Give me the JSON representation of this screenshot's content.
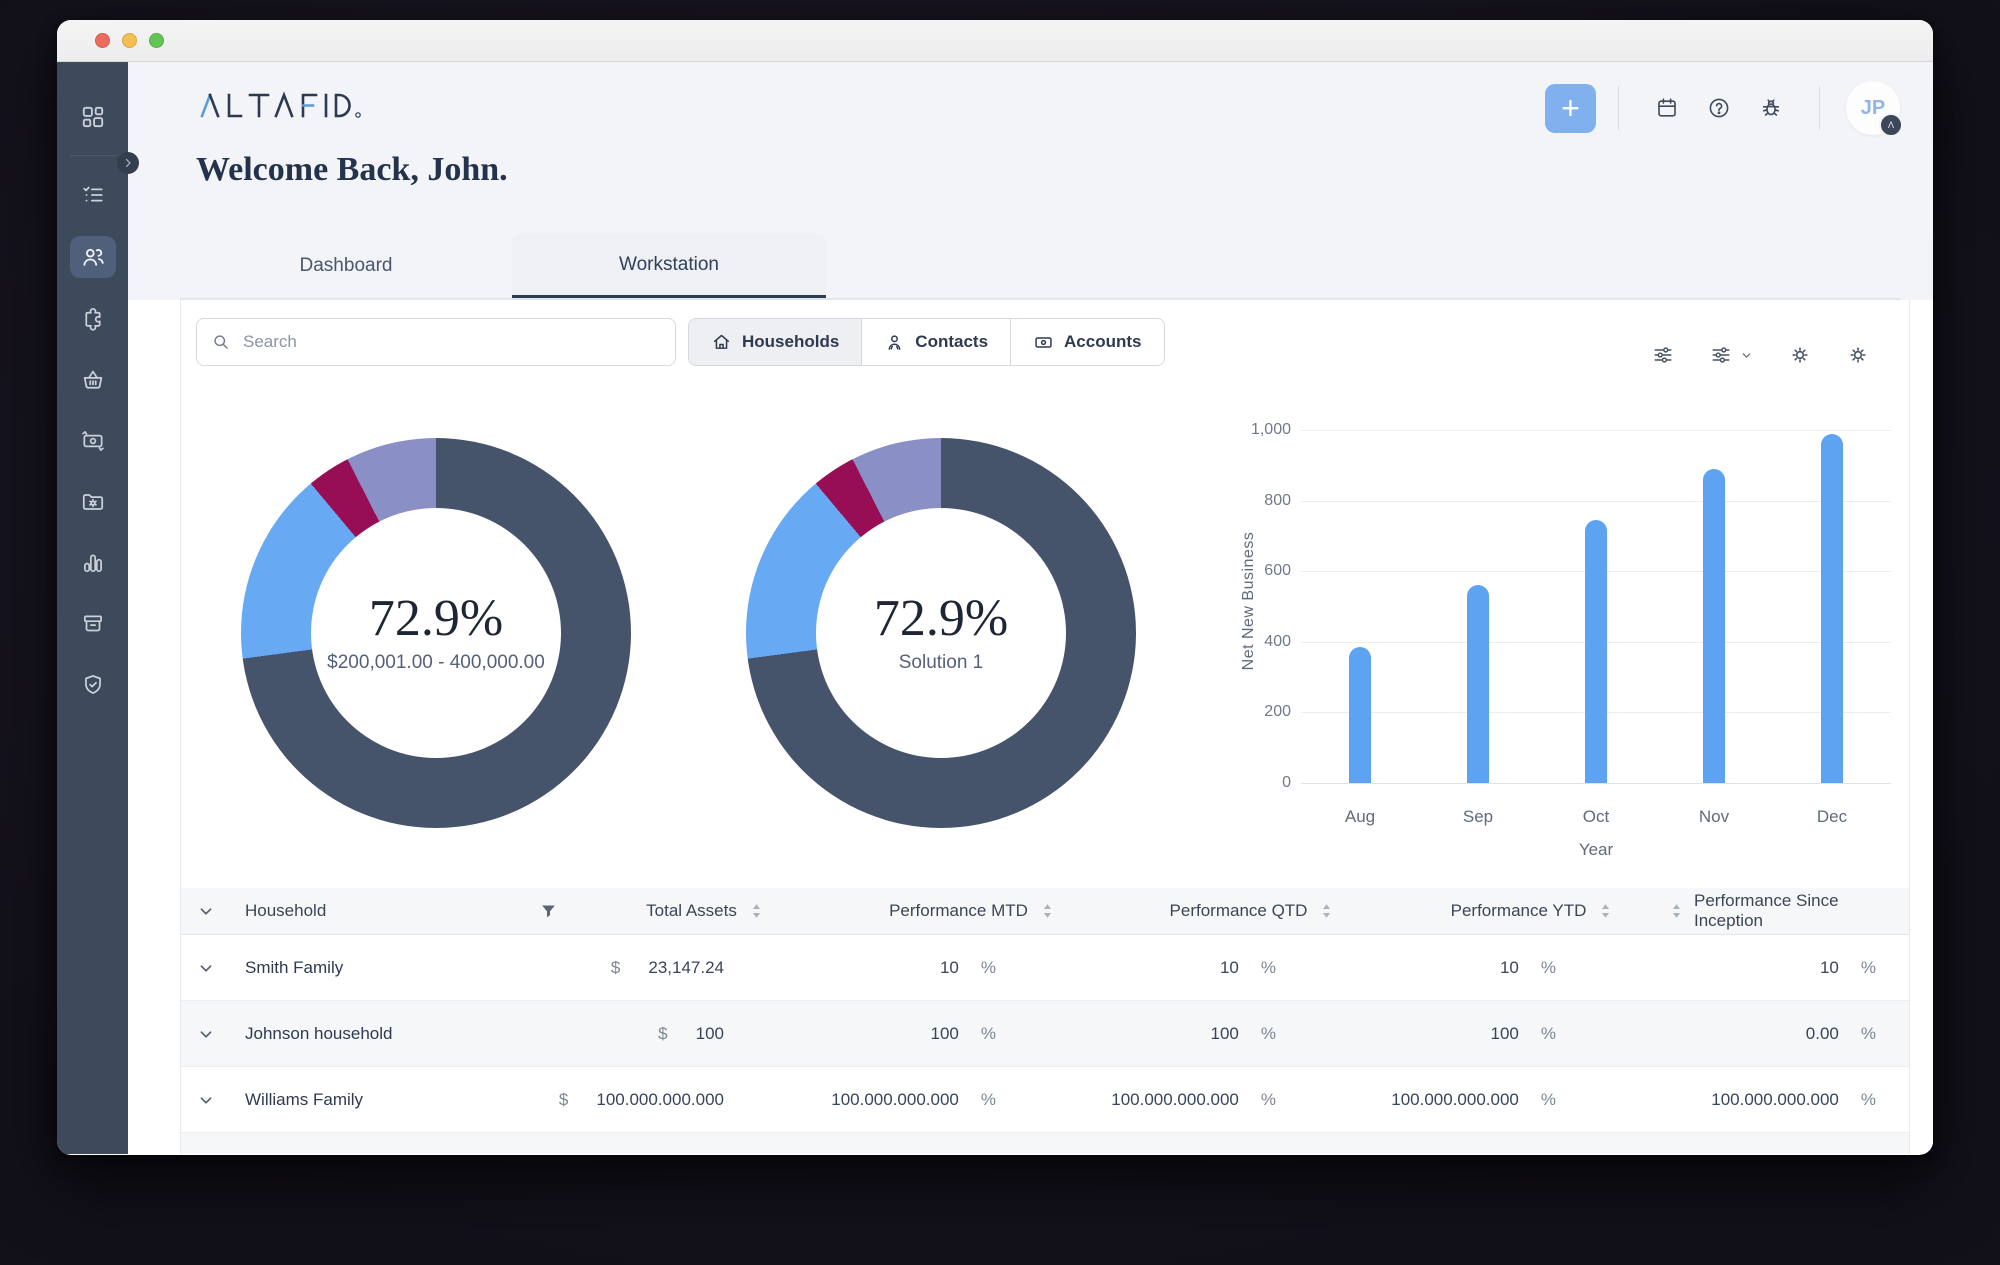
{
  "window": {
    "traffic_lights": [
      "close",
      "minimize",
      "zoom"
    ]
  },
  "brand": {
    "logo_text": "ALTAFID"
  },
  "sidebar": {
    "items": [
      {
        "name": "dashboard",
        "icon": "grid-icon",
        "active": false
      },
      {
        "name": "tasks",
        "icon": "checklist-icon",
        "active": false
      },
      {
        "name": "clients",
        "icon": "people-icon",
        "active": true
      },
      {
        "name": "integrations",
        "icon": "puzzle-icon",
        "active": false
      },
      {
        "name": "marketplace",
        "icon": "basket-icon",
        "active": false
      },
      {
        "name": "transactions",
        "icon": "money-icon",
        "active": false
      },
      {
        "name": "documents",
        "icon": "folder-gear-icon",
        "active": false
      },
      {
        "name": "analytics",
        "icon": "bar-stats-icon",
        "active": false
      },
      {
        "name": "archive",
        "icon": "archive-icon",
        "active": false
      },
      {
        "name": "security",
        "icon": "shield-check-icon",
        "active": false
      }
    ]
  },
  "topbar": {
    "add_button_label": "+",
    "icons": [
      "calendar-icon",
      "help-icon",
      "bug-icon"
    ],
    "avatar": {
      "initials": "JP",
      "badge": "Λ"
    }
  },
  "page": {
    "greeting": "Welcome Back, John.",
    "tabs": [
      {
        "label": "Dashboard",
        "active": false
      },
      {
        "label": "Workstation",
        "active": true
      }
    ]
  },
  "toolbar": {
    "search_placeholder": "Search",
    "segments": [
      {
        "label": "Households",
        "icon": "home-icon",
        "active": true
      },
      {
        "label": "Contacts",
        "icon": "person-icon",
        "active": false
      },
      {
        "label": "Accounts",
        "icon": "banknote-icon",
        "active": false
      }
    ],
    "right_icons": [
      "sliders-icon",
      "sliders-dropdown-icon",
      "gear-icon",
      "gear-icon"
    ]
  },
  "chart_data": [
    {
      "type": "pie",
      "subtype": "donut",
      "center_value": "72.9%",
      "center_label": "$200,001.00 - 400,000.00",
      "slices": [
        {
          "label": "primary",
          "value": 72.9,
          "color": "#45536B"
        },
        {
          "label": "slice-2",
          "value": 16.0,
          "color": "#68A9F4"
        },
        {
          "label": "slice-3",
          "value": 3.6,
          "color": "#970E55"
        },
        {
          "label": "slice-4",
          "value": 7.5,
          "color": "#8A90C6"
        }
      ]
    },
    {
      "type": "pie",
      "subtype": "donut",
      "center_value": "72.9%",
      "center_label": "Solution 1",
      "slices": [
        {
          "label": "primary",
          "value": 72.9,
          "color": "#45536B"
        },
        {
          "label": "slice-2",
          "value": 16.0,
          "color": "#68A9F4"
        },
        {
          "label": "slice-3",
          "value": 3.6,
          "color": "#970E55"
        },
        {
          "label": "slice-4",
          "value": 7.5,
          "color": "#8A90C6"
        }
      ]
    },
    {
      "type": "bar",
      "categories": [
        "Aug",
        "Sep",
        "Oct",
        "Nov",
        "Dec"
      ],
      "values": [
        385,
        560,
        745,
        890,
        990
      ],
      "title": "",
      "xlabel": "Year",
      "ylabel": "Net New Business",
      "ylim": [
        0,
        1000
      ],
      "yticks": [
        0,
        200,
        400,
        600,
        800,
        1000
      ],
      "bar_color": "#5EA3F2",
      "grid": true,
      "legend": false
    }
  ],
  "table": {
    "meta": {
      "currency": "$",
      "unit": "%"
    },
    "columns": [
      {
        "label": "",
        "type": "expander"
      },
      {
        "label": "Household",
        "icon": "filter-funnel-icon"
      },
      {
        "label": "Total Assets",
        "sortable": true
      },
      {
        "label": "Performance MTD",
        "sortable": true
      },
      {
        "label": "Performance QTD",
        "sortable": true
      },
      {
        "label": "Performance YTD",
        "sortable": true
      },
      {
        "label": "Performance Since Inception",
        "sortable": true,
        "icon_position": "left"
      }
    ],
    "rows": [
      {
        "name": "Smith Family",
        "assets": "23,147.24",
        "mtd": "10",
        "qtd": "10",
        "ytd": "10",
        "inception": "10"
      },
      {
        "name": "Johnson household",
        "assets": "100",
        "mtd": "100",
        "qtd": "100",
        "ytd": "100",
        "inception": "0.00"
      },
      {
        "name": "Williams Family",
        "assets": "100.000.000.000",
        "mtd": "100.000.000.000",
        "qtd": "100.000.000.000",
        "ytd": "100.000.000.000",
        "inception": "100.000.000.000"
      }
    ]
  }
}
